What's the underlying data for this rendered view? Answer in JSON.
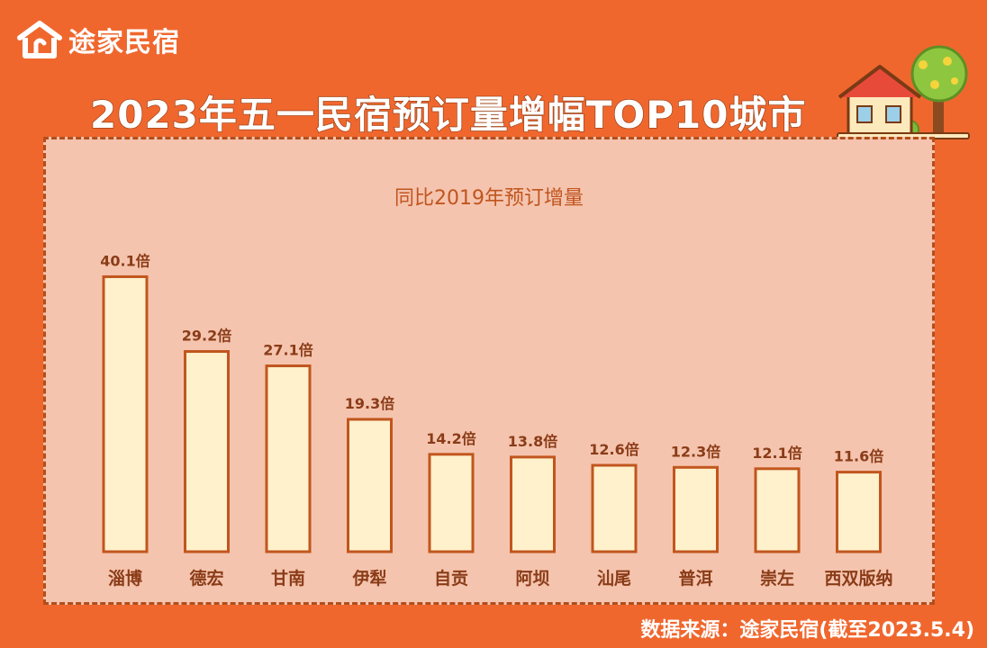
{
  "brand": {
    "name": "途家民宿",
    "logo_icon": "house-logo-icon"
  },
  "main_title": "2023年五一民宿预订量增幅TOP10城市",
  "source_text": "数据来源：途家民宿(截至2023.5.4)",
  "colors": {
    "background": "#F0672E",
    "panel": "#F5C4AE",
    "bar_fill": "#FEF1CC",
    "bar_stroke": "#C1561E",
    "label_text": "#8A3C18",
    "subtitle_text": "#C0551F"
  },
  "chart_data": {
    "type": "bar",
    "title": "同比2019年预订增量",
    "categories": [
      "淄博",
      "德宏",
      "甘南",
      "伊犁",
      "自贡",
      "阿坝",
      "汕尾",
      "普洱",
      "崇左",
      "西双版纳"
    ],
    "values": [
      40.1,
      29.2,
      27.1,
      19.3,
      14.2,
      13.8,
      12.6,
      12.3,
      12.1,
      11.6
    ],
    "data_labels": [
      "40.1倍",
      "29.2倍",
      "27.1倍",
      "19.3倍",
      "14.2倍",
      "13.8倍",
      "12.6倍",
      "12.3倍",
      "12.1倍",
      "11.6倍"
    ],
    "ylim": [
      0,
      42
    ],
    "grid": false,
    "legend": "none"
  }
}
